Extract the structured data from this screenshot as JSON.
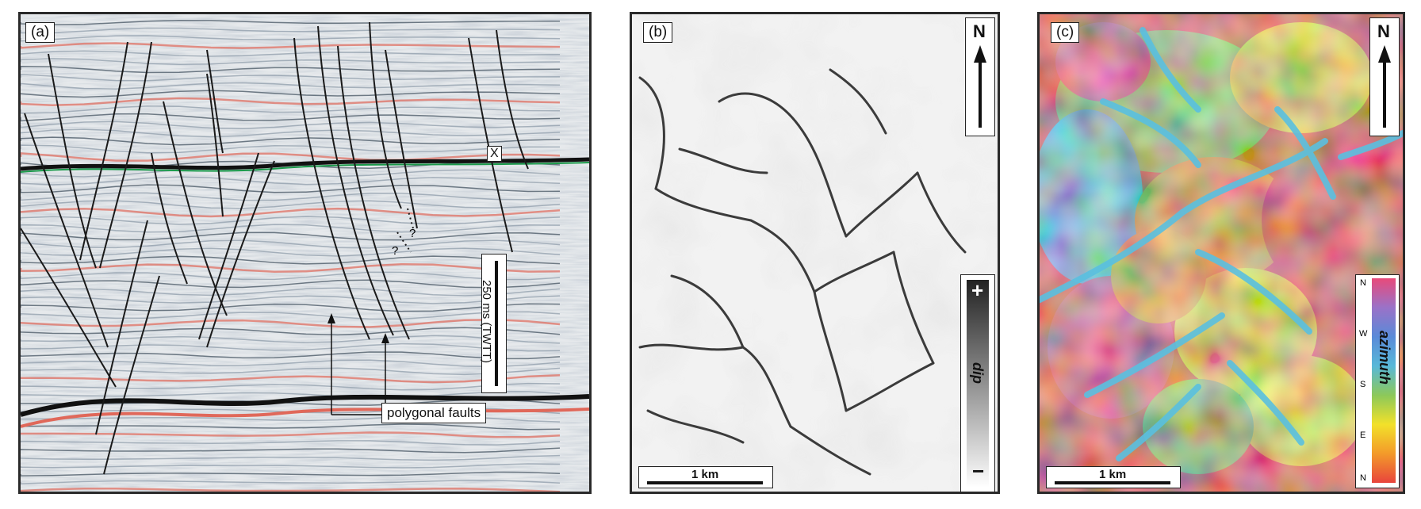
{
  "panel_a": {
    "label": "(a)",
    "marker": "X",
    "question_marks": [
      "?",
      "?"
    ],
    "scale_label": "250 ms (TWTT)",
    "annotation": "polygonal faults"
  },
  "panel_b": {
    "label": "(b)",
    "north": "N",
    "scale_label": "1 km",
    "legend_title": "dip",
    "legend_plus": "+",
    "legend_minus": "−"
  },
  "panel_c": {
    "label": "(c)",
    "north": "N",
    "scale_label": "1 km",
    "legend_title": "azimuth",
    "legend_ticks": [
      "N",
      "W",
      "S",
      "E",
      "N"
    ]
  },
  "colors": {
    "seismic_red": "#e0685a",
    "horizon_green": "#1a9a4a",
    "fault_line": "#1a1a1a"
  }
}
